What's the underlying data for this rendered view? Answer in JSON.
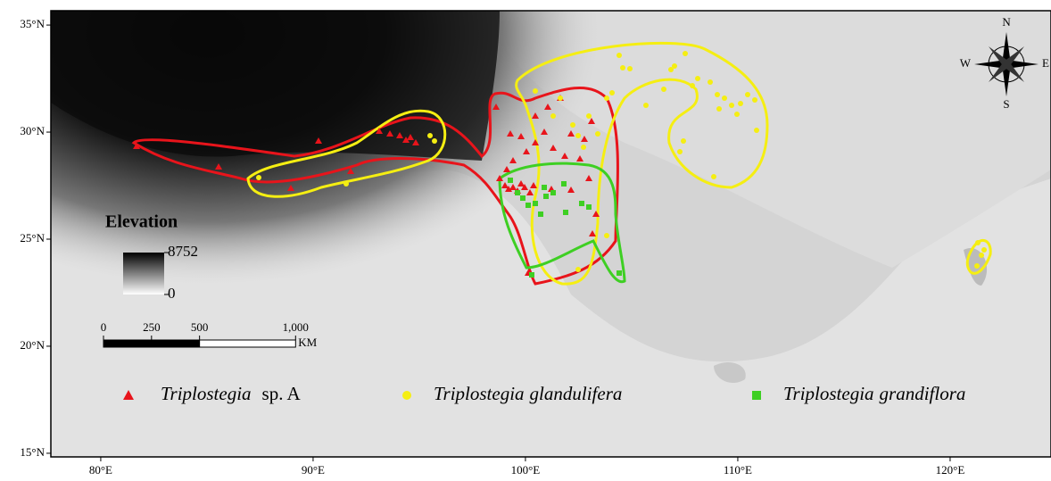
{
  "map": {
    "xlim": [
      77.65,
      124.75
    ],
    "ylim": [
      14.83,
      35.67
    ],
    "xticks": [
      {
        "value": 80,
        "label": "80°E"
      },
      {
        "value": 90,
        "label": "90°E"
      },
      {
        "value": 100,
        "label": "100°E"
      },
      {
        "value": 110,
        "label": "110°E"
      },
      {
        "value": 120,
        "label": "120°E"
      }
    ],
    "yticks": [
      {
        "value": 15,
        "label": "15°N"
      },
      {
        "value": 20,
        "label": "20°N"
      },
      {
        "value": 25,
        "label": "25°N"
      },
      {
        "value": 30,
        "label": "30°N"
      },
      {
        "value": 35,
        "label": "35°N"
      }
    ],
    "legend": [
      {
        "genus": "Triplostegia",
        "epithet": "sp. A",
        "color": "#e8141b"
      },
      {
        "genus": "Triplostegia",
        "epithet": "glandulifera",
        "color": "#f5ee12"
      },
      {
        "genus": "Triplostegia",
        "epithet": "grandiflora",
        "color": "#3ecf23"
      }
    ],
    "elevation_legend": {
      "title": "Elevation",
      "max": 8752,
      "min": 0
    },
    "scale_bar": {
      "ticks": [
        0,
        250,
        500,
        {
          "value": 1000,
          "label": "1,000"
        }
      ],
      "unit": "KM"
    },
    "compass": {
      "north": "N",
      "south": "S",
      "east": "E",
      "west": "W"
    }
  }
}
